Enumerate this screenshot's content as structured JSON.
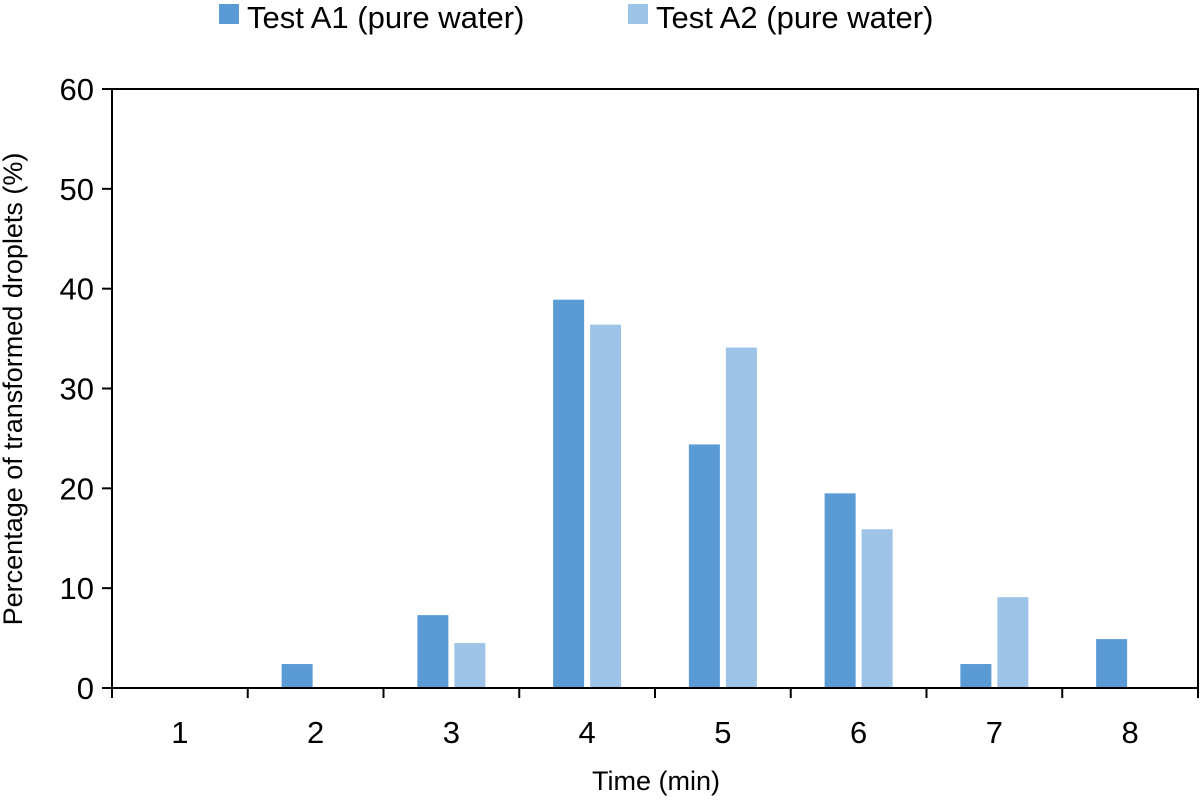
{
  "chart_data": {
    "type": "bar",
    "title": "",
    "xlabel": "Time (min)",
    "ylabel": "Percentage of transformed droplets (%)",
    "ylim": [
      0,
      60
    ],
    "yticks": [
      "0",
      "10",
      "20",
      "30",
      "40",
      "50",
      "60"
    ],
    "categories": [
      "1",
      "2",
      "3",
      "4",
      "5",
      "6",
      "7",
      "8"
    ],
    "series": [
      {
        "name": "Test A1 (pure water)",
        "color": "#5b9bd5",
        "values": [
          0,
          2.4,
          7.3,
          38.9,
          24.4,
          19.5,
          2.4,
          4.9
        ]
      },
      {
        "name": "Test A2 (pure water)",
        "color": "#9dc3e6",
        "values": [
          0,
          0,
          4.5,
          36.4,
          34.1,
          15.9,
          9.1,
          0
        ]
      }
    ],
    "legend_position": "top-center",
    "grid": false
  }
}
